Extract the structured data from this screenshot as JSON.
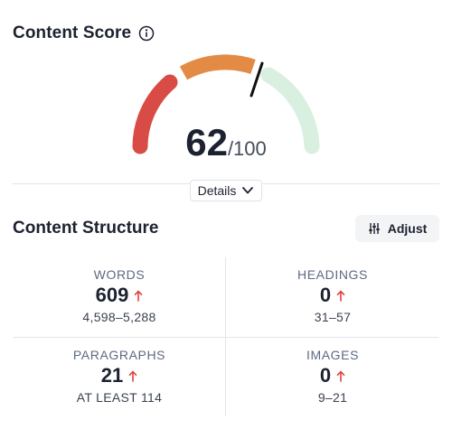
{
  "content_score": {
    "title": "Content Score",
    "score": "62",
    "max": "/100",
    "details_label": "Details",
    "gauge_colors": {
      "low": "#d94b45",
      "mid": "#e38b45",
      "high": "#d9efe0",
      "needle": "#111111"
    }
  },
  "structure": {
    "title": "Content Structure",
    "adjust_label": "Adjust",
    "metrics": [
      {
        "label": "WORDS",
        "value": "609",
        "range": "4,598–5,288",
        "trend_icon": "arrow-up-icon"
      },
      {
        "label": "HEADINGS",
        "value": "0",
        "range": "31–57",
        "trend_icon": "arrow-up-icon"
      },
      {
        "label": "PARAGRAPHS",
        "value": "21",
        "range": "AT LEAST 114",
        "trend_icon": "arrow-up-icon"
      },
      {
        "label": "IMAGES",
        "value": "0",
        "range": "9–21",
        "trend_icon": "arrow-up-icon"
      }
    ],
    "trend_color": "#e0413b"
  }
}
